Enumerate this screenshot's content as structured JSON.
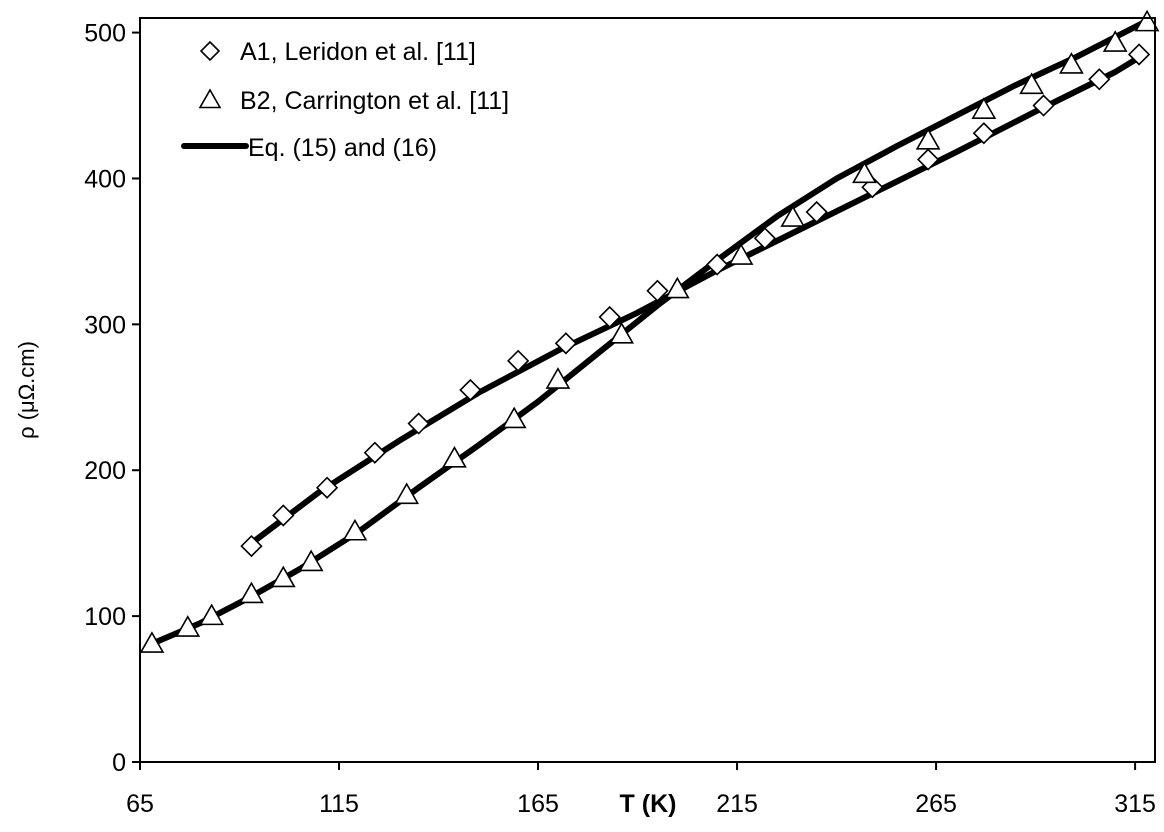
{
  "chart_data": {
    "type": "scatter",
    "title": "",
    "xlabel": "T (K)",
    "ylabel": "ρ (μΩ.cm)",
    "xlim": [
      65,
      320
    ],
    "ylim": [
      0,
      510
    ],
    "xticks": [
      65,
      115,
      165,
      215,
      265,
      315
    ],
    "yticks": [
      0,
      100,
      200,
      300,
      400,
      500
    ],
    "legend_position": "top-left",
    "series": [
      {
        "name": "A1, Leridon et al.  [11]",
        "marker": "diamond",
        "x": [
          93,
          101,
          112,
          124,
          135,
          148,
          160,
          172,
          183,
          195,
          210,
          222,
          235,
          249,
          263,
          277,
          292,
          306,
          316
        ],
        "y": [
          148,
          169,
          188,
          212,
          232,
          255,
          275,
          287,
          305,
          323,
          341,
          359,
          377,
          394,
          413,
          431,
          450,
          468,
          485
        ]
      },
      {
        "name": "B2, Carrington et al. [11]",
        "marker": "triangle",
        "x": [
          68,
          77,
          83,
          93,
          101,
          108,
          119,
          132,
          144,
          159,
          170,
          186,
          200,
          216,
          229,
          247,
          263,
          277,
          289,
          299,
          310,
          318
        ],
        "y": [
          81,
          92,
          100,
          115,
          126,
          137,
          158,
          183,
          208,
          235,
          262,
          293,
          324,
          347,
          373,
          403,
          426,
          447,
          464,
          478,
          493,
          507
        ]
      },
      {
        "name": "Eq. (15) and (16)",
        "style": "line",
        "curves": [
          {
            "x": [
              93,
              110,
              130,
              150,
              170,
              190,
              210,
              230,
              250,
              270,
              290,
              310,
              316
            ],
            "y": [
              150,
              185,
              220,
              253,
              282,
              308,
              337,
              364,
              391,
              418,
              446,
              473,
              483
            ]
          },
          {
            "x": [
              68,
              80,
              92,
              105,
              120,
              135,
              150,
              165,
              180,
              195,
              210,
              225,
              240,
              255,
              270,
              285,
              300,
              318
            ],
            "y": [
              81,
              95,
              112,
              132,
              158,
              188,
              217,
              247,
              280,
              313,
              344,
              374,
              400,
              422,
              443,
              464,
              483,
              508
            ]
          }
        ]
      }
    ]
  }
}
